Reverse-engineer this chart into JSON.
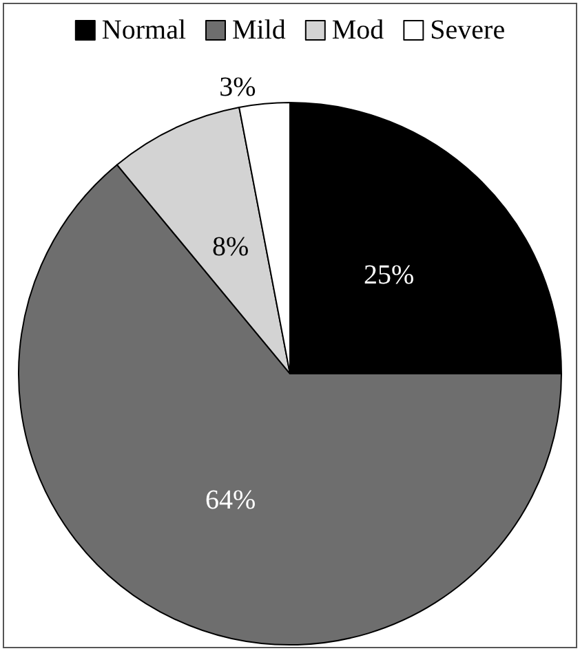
{
  "chart_data": {
    "type": "pie",
    "categories": [
      "Normal",
      "Mild",
      "Mod",
      "Severe"
    ],
    "values": [
      25,
      64,
      8,
      3
    ],
    "colors": [
      "#000000",
      "#6e6e6e",
      "#d3d3d3",
      "#ffffff"
    ],
    "value_labels": [
      "25%",
      "64%",
      "8%",
      "3%"
    ],
    "legend": "top"
  }
}
